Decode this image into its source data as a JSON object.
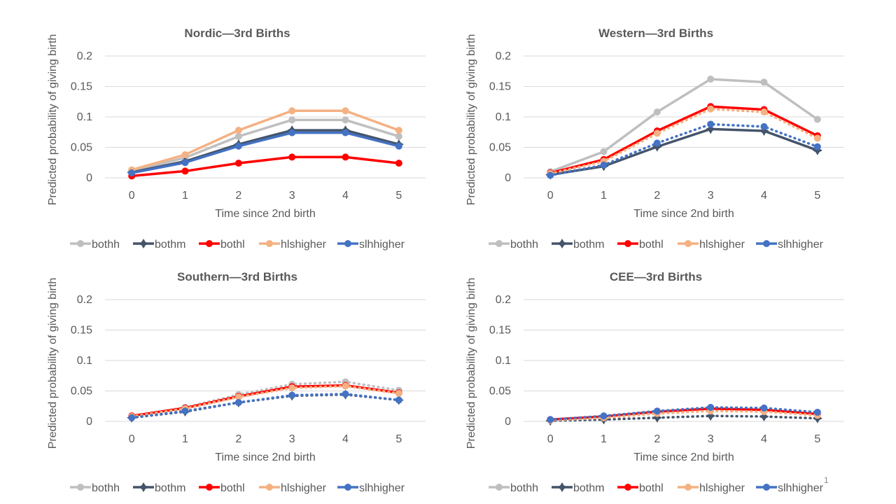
{
  "page_number": "1",
  "colors": {
    "bothh": "#bfbfbf",
    "bothm": "#44546a",
    "bothl": "#ff0000",
    "hlshigher": "#f4b183",
    "slhhigher": "#4472c4",
    "grid": "#d9d9d9",
    "text": "#595959"
  },
  "chart_data": [
    {
      "type": "line",
      "title": "Nordic—3rd  Births",
      "xlabel": "Time since 2nd birth",
      "ylabel": "Predicted probability of giving birth",
      "x": [
        0,
        1,
        2,
        3,
        4,
        5
      ],
      "ylim": [
        0,
        0.2
      ],
      "yticks": [
        "0",
        "0.05",
        "0.1",
        "0.15",
        "0.2"
      ],
      "grid": true,
      "legend_position": "bottom",
      "series": [
        {
          "name": "bothh",
          "values": [
            0.011,
            0.033,
            0.068,
            0.095,
            0.095,
            0.068
          ],
          "style": "solid",
          "marker": "circle"
        },
        {
          "name": "bothm",
          "values": [
            0.009,
            0.027,
            0.055,
            0.078,
            0.078,
            0.055
          ],
          "style": "solid",
          "marker": "star"
        },
        {
          "name": "bothl",
          "values": [
            0.003,
            0.011,
            0.024,
            0.034,
            0.034,
            0.024
          ],
          "style": "solid",
          "marker": "circle"
        },
        {
          "name": "hlshigher",
          "values": [
            0.013,
            0.038,
            0.078,
            0.11,
            0.11,
            0.078
          ],
          "style": "solid",
          "marker": "circle"
        },
        {
          "name": "slhhigher",
          "values": [
            0.008,
            0.025,
            0.052,
            0.074,
            0.074,
            0.052
          ],
          "style": "solid",
          "marker": "circle"
        }
      ]
    },
    {
      "type": "line",
      "title": "Western—3rd  Births",
      "xlabel": "Time since 2nd birth",
      "ylabel": "Predicted probability of giving birth",
      "x": [
        0,
        1,
        2,
        3,
        4,
        5
      ],
      "ylim": [
        0,
        0.2
      ],
      "yticks": [
        "0",
        "0.05",
        "0.1",
        "0.15",
        "0.2"
      ],
      "grid": true,
      "legend_position": "bottom",
      "series": [
        {
          "name": "bothh",
          "values": [
            0.01,
            0.043,
            0.108,
            0.162,
            0.157,
            0.096
          ],
          "style": "solid",
          "marker": "circle"
        },
        {
          "name": "bothm",
          "values": [
            0.005,
            0.019,
            0.051,
            0.08,
            0.077,
            0.045
          ],
          "style": "solid",
          "marker": "star"
        },
        {
          "name": "bothl",
          "values": [
            0.008,
            0.03,
            0.077,
            0.117,
            0.112,
            0.069
          ],
          "style": "solid",
          "marker": "circle"
        },
        {
          "name": "hlshigher",
          "values": [
            0.007,
            0.027,
            0.073,
            0.113,
            0.108,
            0.065
          ],
          "style": "dotted",
          "marker": "circle"
        },
        {
          "name": "slhhigher",
          "values": [
            0.004,
            0.021,
            0.057,
            0.088,
            0.084,
            0.051
          ],
          "style": "dotted",
          "marker": "circle"
        }
      ]
    },
    {
      "type": "line",
      "title": "Southern—3rd  Births",
      "xlabel": "Time since 2nd birth",
      "ylabel": "Predicted probability of giving birth",
      "x": [
        0,
        1,
        2,
        3,
        4,
        5
      ],
      "ylim": [
        0,
        0.2
      ],
      "yticks": [
        "0",
        "0.05",
        "0.1",
        "0.15",
        "0.2"
      ],
      "grid": true,
      "legend_position": "bottom",
      "series": [
        {
          "name": "bothh",
          "values": [
            0.009,
            0.023,
            0.044,
            0.061,
            0.065,
            0.051
          ],
          "style": "dotted",
          "marker": "circle"
        },
        {
          "name": "bothm",
          "values": [
            0.006,
            0.016,
            0.031,
            0.042,
            0.044,
            0.035
          ],
          "style": "dotted",
          "marker": "star"
        },
        {
          "name": "bothl",
          "values": [
            0.009,
            0.022,
            0.041,
            0.057,
            0.059,
            0.047
          ],
          "style": "solid",
          "marker": "circle"
        },
        {
          "name": "hlshigher",
          "values": [
            0.008,
            0.021,
            0.04,
            0.055,
            0.058,
            0.046
          ],
          "style": "dotted",
          "marker": "circle"
        },
        {
          "name": "slhhigher",
          "values": [
            0.006,
            0.017,
            0.031,
            0.043,
            0.045,
            0.035
          ],
          "style": "dotted",
          "marker": "circle"
        }
      ]
    },
    {
      "type": "line",
      "title": "CEE—3rd  Births",
      "xlabel": "Time since 2nd birth",
      "ylabel": "Predicted probability of giving birth",
      "x": [
        0,
        1,
        2,
        3,
        4,
        5
      ],
      "ylim": [
        0,
        0.2
      ],
      "yticks": [
        "0",
        "0.05",
        "0.1",
        "0.15",
        "0.2"
      ],
      "grid": true,
      "legend_position": "bottom",
      "series": [
        {
          "name": "bothh",
          "values": [
            0.002,
            0.006,
            0.013,
            0.018,
            0.017,
            0.011
          ],
          "style": "dotted",
          "marker": "circle"
        },
        {
          "name": "bothm",
          "values": [
            0.001,
            0.003,
            0.006,
            0.009,
            0.008,
            0.005
          ],
          "style": "dotted",
          "marker": "star"
        },
        {
          "name": "bothl",
          "values": [
            0.003,
            0.008,
            0.016,
            0.021,
            0.019,
            0.012
          ],
          "style": "solid",
          "marker": "circle"
        },
        {
          "name": "hlshigher",
          "values": [
            0.002,
            0.006,
            0.013,
            0.017,
            0.016,
            0.01
          ],
          "style": "dotted",
          "marker": "circle"
        },
        {
          "name": "slhhigher",
          "values": [
            0.003,
            0.009,
            0.017,
            0.023,
            0.022,
            0.015
          ],
          "style": "dotted",
          "marker": "circle"
        }
      ]
    }
  ]
}
